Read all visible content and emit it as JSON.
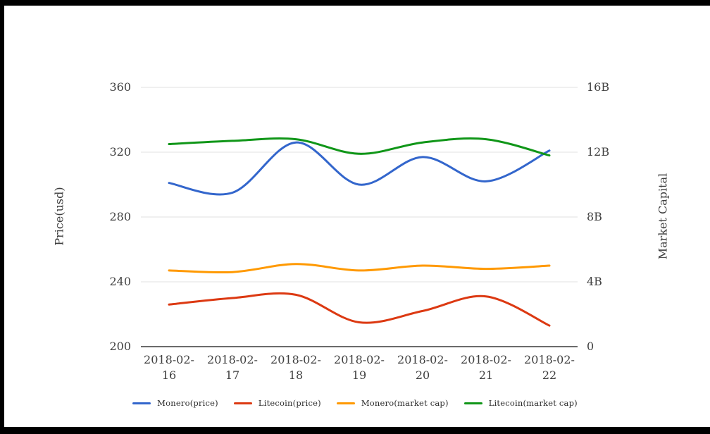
{
  "chart_data": {
    "type": "line",
    "curve": "smooth",
    "grid": true,
    "legend_position": "bottom",
    "x": [
      "2018-02-16",
      "2018-02-17",
      "2018-02-18",
      "2018-02-19",
      "2018-02-20",
      "2018-02-21",
      "2018-02-22"
    ],
    "x_labels": [
      {
        "line1": "2018-02-",
        "line2": "16"
      },
      {
        "line1": "2018-02-",
        "line2": "17"
      },
      {
        "line1": "2018-02-",
        "line2": "18"
      },
      {
        "line1": "2018-02-",
        "line2": "19"
      },
      {
        "line1": "2018-02-",
        "line2": "20"
      },
      {
        "line1": "2018-02-",
        "line2": "21"
      },
      {
        "line1": "2018-02-",
        "line2": "22"
      }
    ],
    "left_axis": {
      "title": "Price(usd)",
      "ticks": [
        "360",
        "320",
        "280",
        "240",
        "200"
      ],
      "tick_values": [
        360,
        320,
        280,
        240,
        200
      ],
      "min": 200,
      "max": 360
    },
    "right_axis": {
      "title": "Market Capital",
      "ticks": [
        "16B",
        "12B",
        "8B",
        "4B",
        "0"
      ],
      "tick_values": [
        16,
        12,
        8,
        4,
        0
      ],
      "min": 0,
      "max": 16
    },
    "series": [
      {
        "name": "Monero(price)",
        "axis": "price",
        "color": "#3366cc",
        "values": [
          301,
          295,
          326,
          300,
          317,
          302,
          321
        ]
      },
      {
        "name": "Litecoin(price)",
        "axis": "price",
        "color": "#dc3912",
        "values": [
          226,
          230,
          232,
          215,
          222,
          231,
          213
        ]
      },
      {
        "name": "Monero(market cap)",
        "axis": "market_cap",
        "color": "#ff9900",
        "values": [
          4.7,
          4.6,
          5.1,
          4.7,
          5.0,
          4.8,
          5.0
        ]
      },
      {
        "name": "Litecoin(market cap)",
        "axis": "market_cap",
        "color": "#109618",
        "values": [
          12.5,
          12.7,
          12.8,
          11.9,
          12.6,
          12.8,
          11.8
        ]
      }
    ],
    "legend": [
      "Monero(price)",
      "Litecoin(price)",
      "Monero(market cap)",
      "Litecoin(market cap)"
    ],
    "colors": {
      "grid_line": "#e0e0e0",
      "baseline": "#3a3a3a",
      "tick_text": "#404040"
    }
  }
}
